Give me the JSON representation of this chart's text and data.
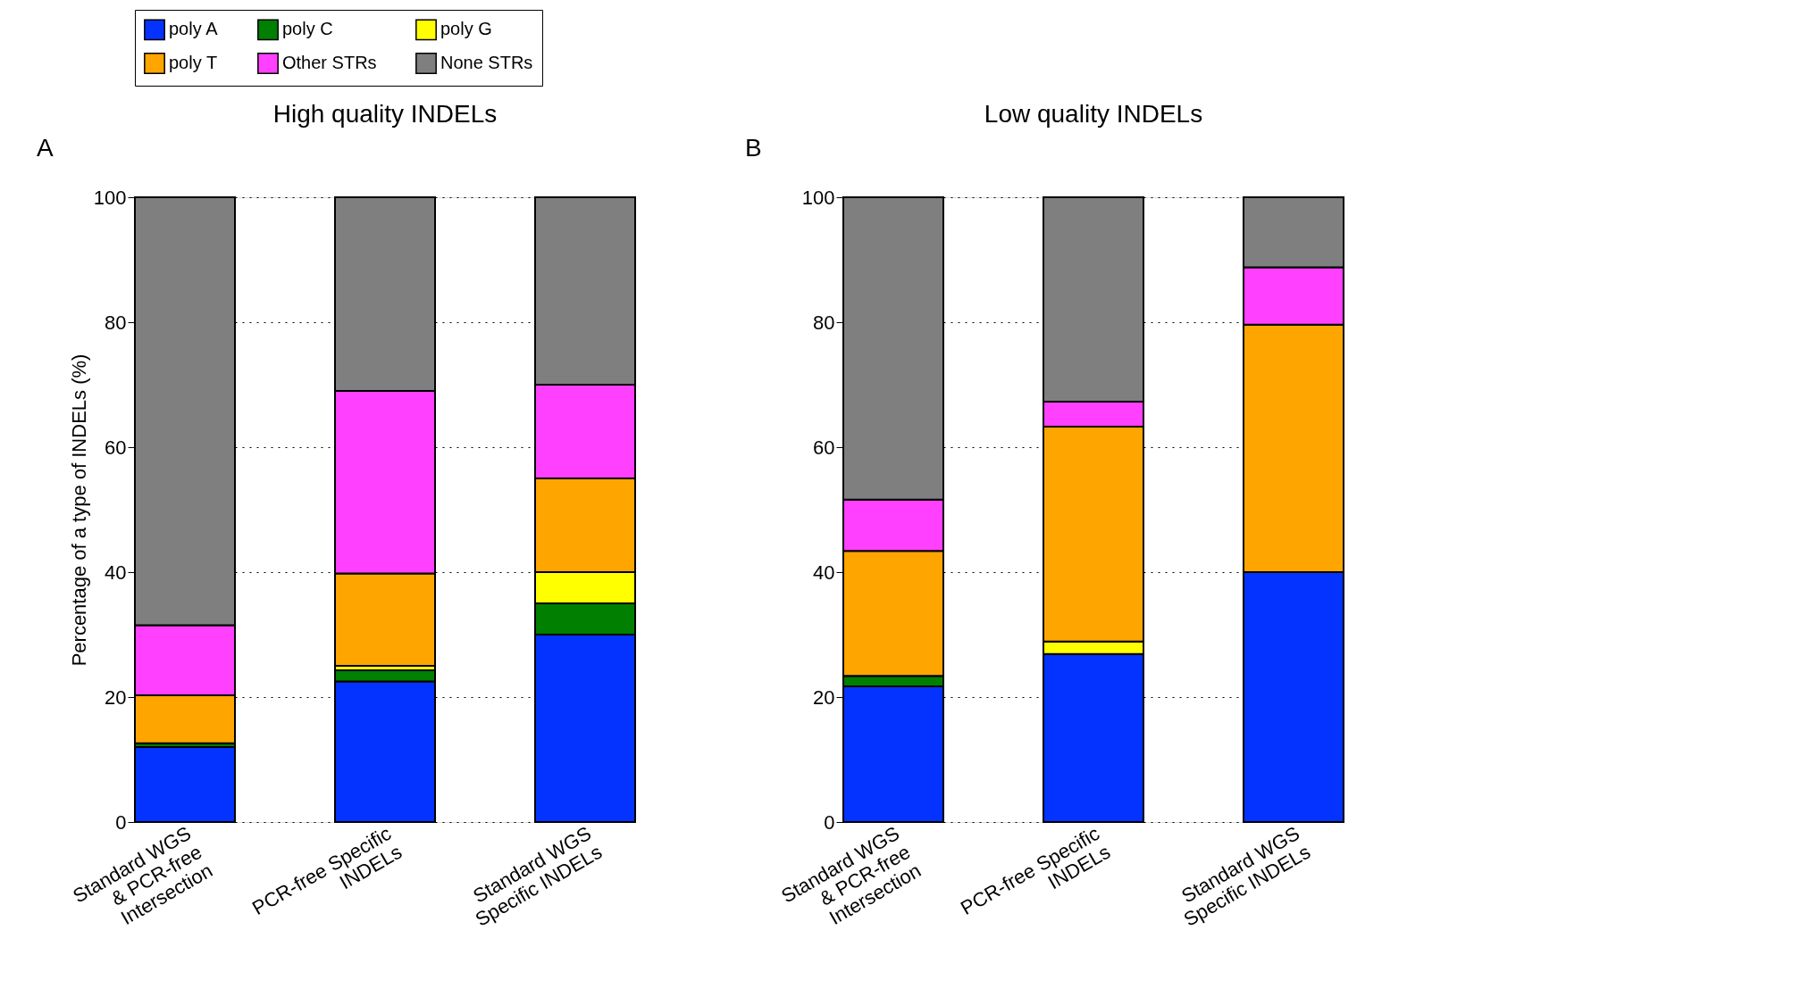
{
  "chart_data": [
    {
      "type": "bar",
      "stacked": true,
      "title": "High quality INDELs",
      "ylabel": "Percentage of a type of INDELs (%)",
      "annotations": [
        "A"
      ],
      "categories": [
        "Standard WGS\n& PCR-free\nIntersection",
        "PCR-free Specific\nINDELs",
        "Standard WGS\nSpecific INDELs"
      ],
      "ylim": [
        0,
        100
      ],
      "yticks": [
        0,
        20,
        40,
        60,
        80,
        100
      ],
      "grid": "y",
      "legend": "top",
      "series": [
        {
          "name": "poly A",
          "color": "#0433ff",
          "values": [
            12,
            22.5,
            30
          ]
        },
        {
          "name": "poly C",
          "color": "#007f00",
          "values": [
            0.6,
            1.8,
            5
          ]
        },
        {
          "name": "poly G",
          "color": "#ffff00",
          "values": [
            0,
            0.7,
            5
          ]
        },
        {
          "name": "poly T",
          "color": "#ffa500",
          "values": [
            7.7,
            14.8,
            15
          ]
        },
        {
          "name": "Other STRs",
          "color": "#ff40ff",
          "values": [
            11.2,
            29.2,
            15
          ]
        },
        {
          "name": "None STRs",
          "color": "#7f7f7f",
          "values": [
            68.5,
            31.0,
            30
          ]
        }
      ]
    },
    {
      "type": "bar",
      "stacked": true,
      "title": "Low quality INDELs",
      "annotations": [
        "B"
      ],
      "categories": [
        "Standard WGS\n& PCR-free\nIntersection",
        "PCR-free Specific\nINDELs",
        "Standard WGS\nSpecific INDELs"
      ],
      "ylim": [
        0,
        100
      ],
      "yticks": [
        0,
        20,
        40,
        60,
        80,
        100
      ],
      "grid": "y",
      "series": [
        {
          "name": "poly A",
          "color": "#0433ff",
          "values": [
            21.7,
            26.9,
            40
          ]
        },
        {
          "name": "poly C",
          "color": "#007f00",
          "values": [
            1.7,
            0,
            0
          ]
        },
        {
          "name": "poly G",
          "color": "#ffff00",
          "values": [
            0,
            2.0,
            0
          ]
        },
        {
          "name": "poly T",
          "color": "#ffa500",
          "values": [
            20,
            34.4,
            39.6
          ]
        },
        {
          "name": "Other STRs",
          "color": "#ff40ff",
          "values": [
            8.2,
            4.0,
            9.2
          ]
        },
        {
          "name": "None STRs",
          "color": "#7f7f7f",
          "values": [
            48.4,
            32.7,
            11.2
          ]
        }
      ]
    }
  ]
}
